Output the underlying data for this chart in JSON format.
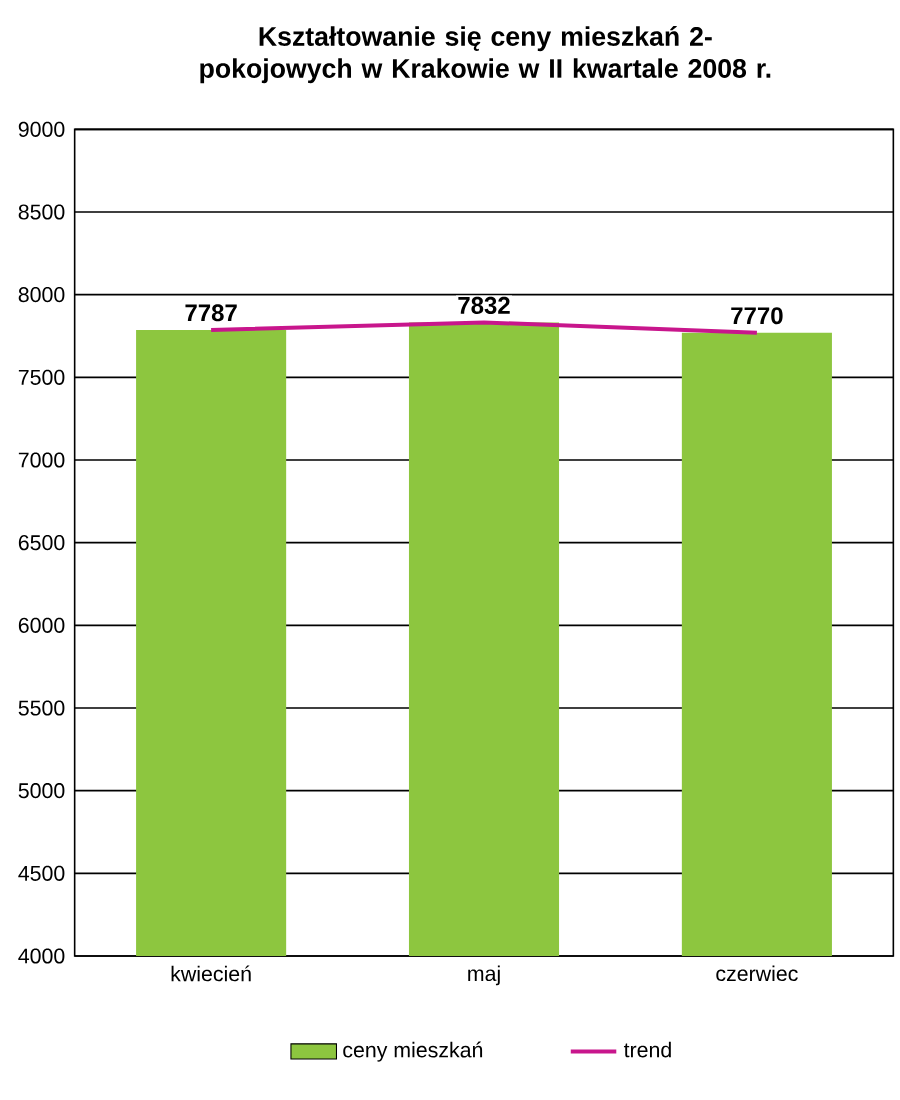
{
  "chart_data": {
    "type": "bar",
    "title": "Kształtowanie się ceny mieszkań 2-pokojowych w Krakowie w II kwartale 2008 r.",
    "categories": [
      "kwiecień",
      "maj",
      "czerwiec"
    ],
    "series": [
      {
        "name": "ceny mieszkań",
        "color": "#8dc63f",
        "values": [
          7787,
          7832,
          7770
        ],
        "value_labels": [
          "7787",
          "7832",
          "7770"
        ]
      },
      {
        "name": "trend",
        "type": "line",
        "color": "#c8168c",
        "values": [
          7787,
          7832,
          7770
        ]
      }
    ],
    "ylim": [
      4000,
      9000
    ],
    "yticks": [
      4000,
      4500,
      5000,
      5500,
      6000,
      6500,
      7000,
      7500,
      8000,
      8500,
      9000
    ],
    "grid": "y",
    "legend": "bottom"
  }
}
